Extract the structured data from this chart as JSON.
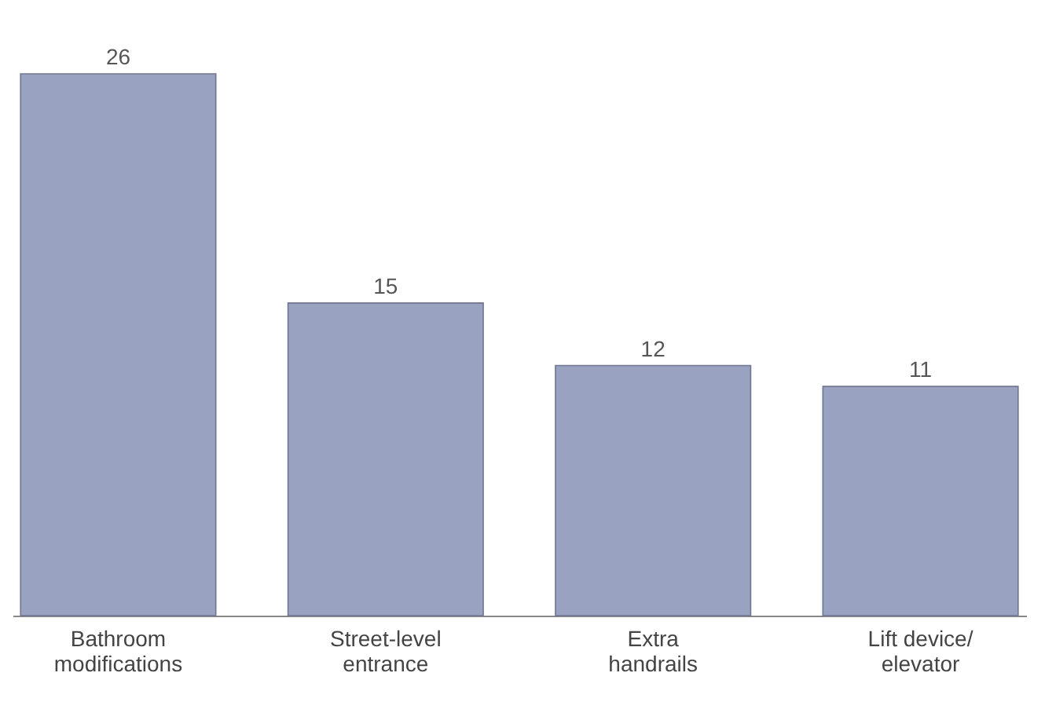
{
  "chart_data": {
    "type": "bar",
    "categories": [
      "Bathroom modifications",
      "Street-level entrance",
      "Extra handrails",
      "Lift device/ elevator"
    ],
    "values": [
      26,
      15,
      12,
      11
    ],
    "color": "#9aa2c1",
    "data_labels": true
  }
}
